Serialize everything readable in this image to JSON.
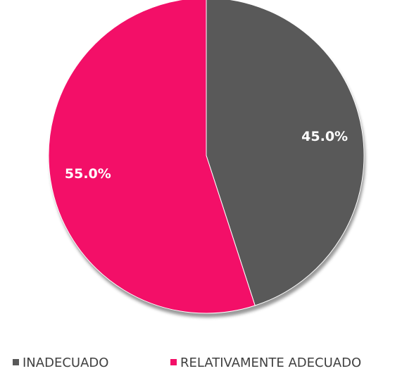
{
  "chart_data": {
    "type": "pie",
    "categories": [
      "INADECUADO",
      "RELATIVAMENTE ADECUADO"
    ],
    "values": [
      45,
      55
    ],
    "value_labels": [
      "45.0%",
      "55.0%"
    ],
    "colors": [
      "#595959",
      "#f30f68"
    ],
    "legend": "bottom"
  }
}
